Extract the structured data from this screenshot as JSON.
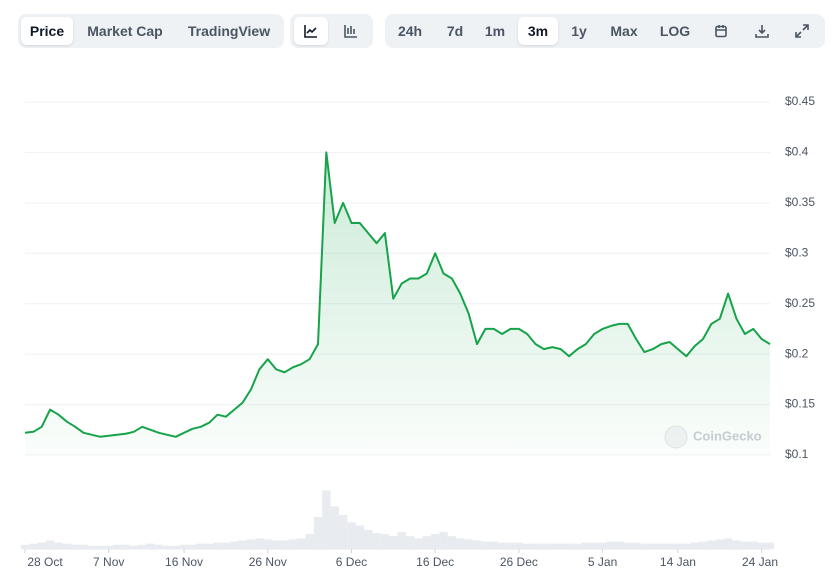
{
  "toolbar": {
    "views": [
      "Price",
      "Market Cap",
      "TradingView"
    ],
    "ranges": [
      "24h",
      "7d",
      "1m",
      "3m",
      "1y",
      "Max",
      "LOG"
    ]
  },
  "watermark": "CoinGecko",
  "chart_data": {
    "type": "line",
    "color": "#16a34a",
    "grid": true,
    "x": [
      "28 Oct",
      "29 Oct",
      "30 Oct",
      "31 Oct",
      "1 Nov",
      "2 Nov",
      "3 Nov",
      "4 Nov",
      "5 Nov",
      "6 Nov",
      "7 Nov",
      "8 Nov",
      "9 Nov",
      "10 Nov",
      "11 Nov",
      "12 Nov",
      "13 Nov",
      "14 Nov",
      "15 Nov",
      "16 Nov",
      "17 Nov",
      "18 Nov",
      "19 Nov",
      "20 Nov",
      "21 Nov",
      "22 Nov",
      "23 Nov",
      "24 Nov",
      "25 Nov",
      "26 Nov",
      "27 Nov",
      "28 Nov",
      "29 Nov",
      "30 Nov",
      "1 Dec",
      "2 Dec",
      "3 Dec",
      "4 Dec",
      "5 Dec",
      "6 Dec",
      "7 Dec",
      "8 Dec",
      "9 Dec",
      "10 Dec",
      "11 Dec",
      "12 Dec",
      "13 Dec",
      "14 Dec",
      "15 Dec",
      "16 Dec",
      "17 Dec",
      "18 Dec",
      "19 Dec",
      "20 Dec",
      "21 Dec",
      "22 Dec",
      "23 Dec",
      "24 Dec",
      "25 Dec",
      "26 Dec",
      "27 Dec",
      "28 Dec",
      "29 Dec",
      "30 Dec",
      "31 Dec",
      "1 Jan",
      "2 Jan",
      "3 Jan",
      "4 Jan",
      "5 Jan",
      "6 Jan",
      "7 Jan",
      "8 Jan",
      "9 Jan",
      "10 Jan",
      "11 Jan",
      "12 Jan",
      "13 Jan",
      "14 Jan",
      "15 Jan",
      "16 Jan",
      "17 Jan",
      "18 Jan",
      "19 Jan",
      "20 Jan",
      "21 Jan",
      "22 Jan",
      "23 Jan",
      "24 Jan",
      "25 Jan"
    ],
    "values": [
      0.122,
      0.123,
      0.128,
      0.145,
      0.14,
      0.133,
      0.128,
      0.122,
      0.12,
      0.118,
      0.119,
      0.12,
      0.121,
      0.123,
      0.128,
      0.125,
      0.122,
      0.12,
      0.118,
      0.122,
      0.126,
      0.128,
      0.132,
      0.14,
      0.138,
      0.145,
      0.152,
      0.165,
      0.185,
      0.195,
      0.185,
      0.182,
      0.187,
      0.19,
      0.195,
      0.21,
      0.4,
      0.33,
      0.35,
      0.33,
      0.33,
      0.32,
      0.31,
      0.32,
      0.255,
      0.27,
      0.275,
      0.275,
      0.28,
      0.3,
      0.28,
      0.275,
      0.26,
      0.24,
      0.21,
      0.225,
      0.225,
      0.22,
      0.225,
      0.225,
      0.22,
      0.21,
      0.205,
      0.207,
      0.205,
      0.198,
      0.205,
      0.21,
      0.22,
      0.225,
      0.228,
      0.23,
      0.23,
      0.215,
      0.202,
      0.205,
      0.21,
      0.212,
      0.205,
      0.198,
      0.208,
      0.215,
      0.23,
      0.235,
      0.26,
      0.235,
      0.22,
      0.225,
      0.215,
      0.21
    ],
    "volumes": [
      4,
      5,
      6,
      8,
      6,
      5,
      4,
      4,
      3,
      3,
      3,
      4,
      4,
      3,
      4,
      5,
      4,
      3,
      3,
      4,
      4,
      5,
      5,
      6,
      6,
      7,
      8,
      9,
      10,
      9,
      8,
      8,
      9,
      10,
      14,
      30,
      55,
      40,
      32,
      25,
      22,
      18,
      15,
      14,
      12,
      16,
      12,
      10,
      12,
      14,
      16,
      12,
      10,
      9,
      8,
      7,
      7,
      6,
      6,
      6,
      5,
      5,
      5,
      5,
      5,
      5,
      5,
      6,
      6,
      6,
      7,
      7,
      6,
      6,
      5,
      5,
      5,
      5,
      5,
      5,
      6,
      7,
      8,
      9,
      10,
      8,
      7,
      7,
      6,
      6
    ],
    "volume_lim": [
      0,
      60
    ],
    "ylim": [
      0.1,
      0.45
    ],
    "yticks": [
      {
        "value": 0.1,
        "label": "$0.1"
      },
      {
        "value": 0.15,
        "label": "$0.15"
      },
      {
        "value": 0.2,
        "label": "$0.2"
      },
      {
        "value": 0.25,
        "label": "$0.25"
      },
      {
        "value": 0.3,
        "label": "$0.3"
      },
      {
        "value": 0.35,
        "label": "$0.35"
      },
      {
        "value": 0.4,
        "label": "$0.4"
      },
      {
        "value": 0.45,
        "label": "$0.45"
      }
    ],
    "xticks": [
      "28 Oct",
      "7 Nov",
      "16 Nov",
      "26 Nov",
      "6 Dec",
      "16 Dec",
      "26 Dec",
      "5 Jan",
      "14 Jan",
      "24 Jan"
    ]
  }
}
